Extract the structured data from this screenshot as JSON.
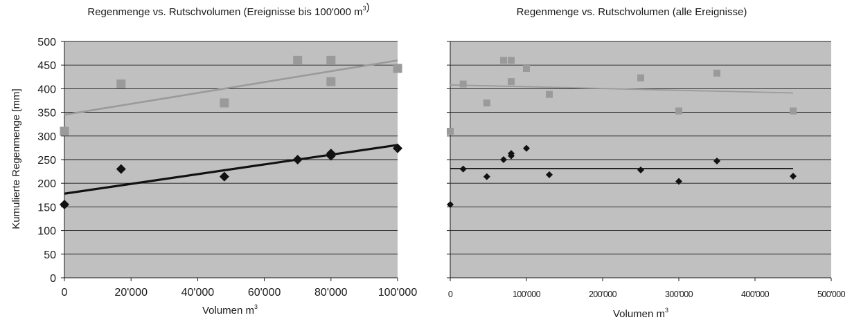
{
  "chart_data": [
    {
      "type": "scatter",
      "title": "Regenmenge vs. Rutschvolumen (Ereignisse bis 100'000 m³)",
      "xlabel": "Volumen m³",
      "ylabel": "Kumulierte Regenmenge [mm]",
      "xlim": [
        0,
        100000
      ],
      "ylim": [
        0,
        500
      ],
      "x_ticks": [
        0,
        20000,
        40000,
        60000,
        80000,
        100000
      ],
      "x_tick_labels": [
        "0",
        "20'000",
        "40'000",
        "60'000",
        "80'000",
        "100'000"
      ],
      "y_ticks": [
        0,
        50,
        100,
        150,
        200,
        250,
        300,
        350,
        400,
        450,
        500
      ],
      "y_tick_labels": [
        "0",
        "50",
        "100",
        "150",
        "200",
        "250",
        "300",
        "350",
        "400",
        "450",
        "500"
      ],
      "grid": "horizontal",
      "series": [
        {
          "marker": "square",
          "color": "#9a9a9a",
          "points": [
            [
              0,
              310
            ],
            [
              17000,
              410
            ],
            [
              48000,
              370
            ],
            [
              70000,
              460
            ],
            [
              80000,
              460
            ],
            [
              80000,
              415
            ],
            [
              100000,
              443
            ]
          ],
          "trend": [
            [
              0,
              345
            ],
            [
              100000,
              460
            ]
          ]
        },
        {
          "marker": "diamond",
          "color": "#111111",
          "points": [
            [
              0,
              155
            ],
            [
              17000,
              230
            ],
            [
              48000,
              214
            ],
            [
              70000,
              250
            ],
            [
              80000,
              263
            ],
            [
              80000,
              258
            ],
            [
              100000,
              274
            ]
          ],
          "trend": [
            [
              0,
              178
            ],
            [
              100000,
              281
            ]
          ]
        }
      ]
    },
    {
      "type": "scatter",
      "title": "Regenmenge vs. Rutschvolumen (alle Ereignisse)",
      "xlabel": "Volumen m³",
      "ylabel": "",
      "xlim": [
        0,
        500000
      ],
      "ylim": [
        0,
        500
      ],
      "x_ticks": [
        0,
        100000,
        200000,
        300000,
        400000,
        500000
      ],
      "x_tick_labels": [
        "0",
        "100'000",
        "200'000",
        "300'000",
        "400'000",
        "500'000"
      ],
      "y_ticks": [
        0,
        50,
        100,
        150,
        200,
        250,
        300,
        350,
        400,
        450,
        500
      ],
      "grid": "horizontal",
      "series": [
        {
          "marker": "square",
          "color": "#9a9a9a",
          "points": [
            [
              0,
              310
            ],
            [
              17000,
              410
            ],
            [
              48000,
              370
            ],
            [
              70000,
              460
            ],
            [
              80000,
              460
            ],
            [
              80000,
              415
            ],
            [
              100000,
              443
            ],
            [
              130000,
              388
            ],
            [
              250000,
              423
            ],
            [
              300000,
              353
            ],
            [
              350000,
              433
            ],
            [
              450000,
              353
            ]
          ],
          "trend": [
            [
              0,
              408
            ],
            [
              450000,
              391
            ]
          ]
        },
        {
          "marker": "diamond",
          "color": "#111111",
          "points": [
            [
              0,
              155
            ],
            [
              17000,
              230
            ],
            [
              48000,
              214
            ],
            [
              70000,
              250
            ],
            [
              80000,
              263
            ],
            [
              80000,
              258
            ],
            [
              100000,
              274
            ],
            [
              130000,
              218
            ],
            [
              250000,
              228
            ],
            [
              300000,
              204
            ],
            [
              350000,
              247
            ],
            [
              450000,
              215
            ]
          ],
          "trend": [
            [
              0,
              231
            ],
            [
              450000,
              231
            ]
          ]
        }
      ]
    }
  ]
}
